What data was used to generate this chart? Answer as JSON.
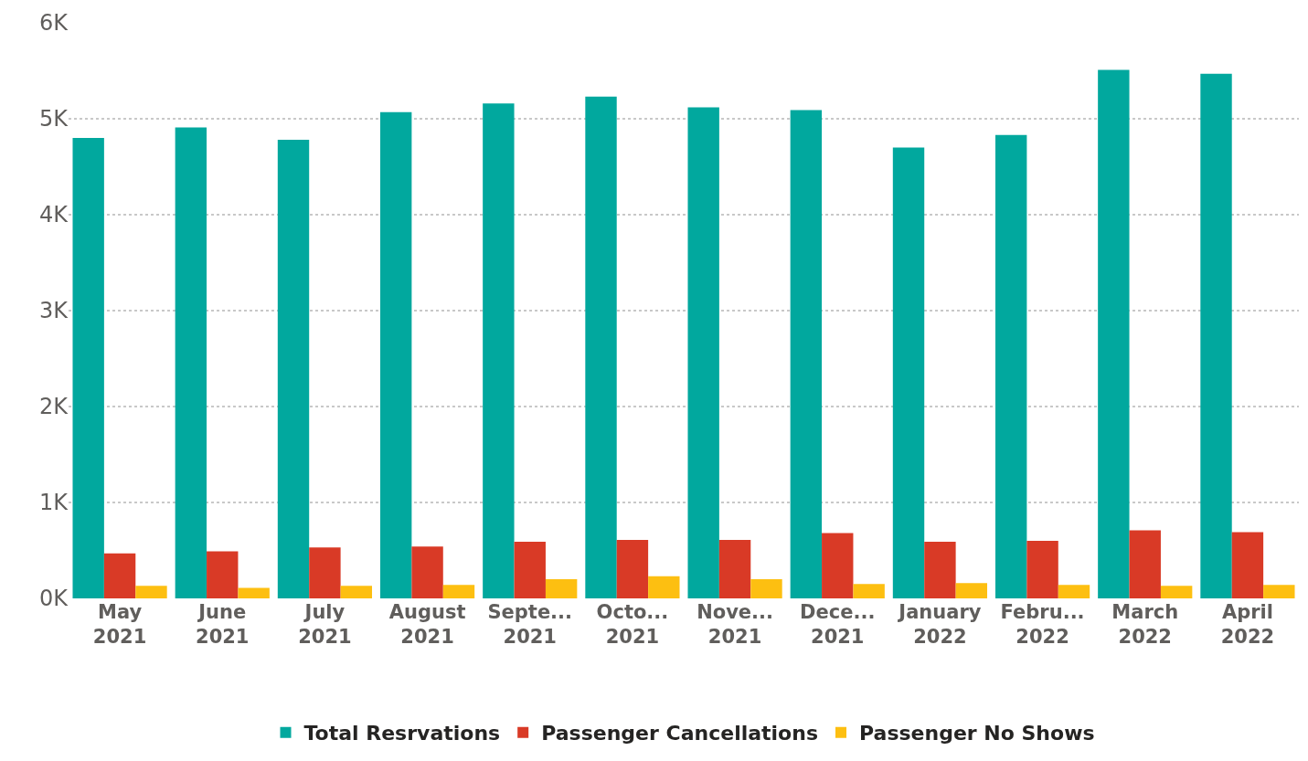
{
  "chart_data": {
    "type": "bar",
    "categories": [
      "May\n2021",
      "June\n2021",
      "July\n2021",
      "August\n2021",
      "Septe...\n2021",
      "Octo...\n2021",
      "Nove...\n2021",
      "Dece...\n2021",
      "January\n2022",
      "Febru...\n2022",
      "March\n2022",
      "April\n2022"
    ],
    "series": [
      {
        "name": "Total Resrvations",
        "color": "#01a89e",
        "values": [
          4800,
          4910,
          4780,
          5070,
          5160,
          5230,
          5120,
          5090,
          4700,
          4830,
          5510,
          5470
        ]
      },
      {
        "name": "Passenger Cancellations",
        "color": "#d93a26",
        "values": [
          470,
          490,
          530,
          540,
          590,
          610,
          610,
          680,
          590,
          600,
          710,
          690
        ]
      },
      {
        "name": "Passenger No Shows",
        "color": "#fdbf11",
        "values": [
          130,
          110,
          130,
          140,
          200,
          230,
          200,
          150,
          160,
          140,
          130,
          140
        ]
      }
    ],
    "ylim": [
      0,
      6000
    ],
    "yticks": [
      {
        "value": 0,
        "label": "0K"
      },
      {
        "value": 1000,
        "label": "1K"
      },
      {
        "value": 2000,
        "label": "2K"
      },
      {
        "value": 3000,
        "label": "3K"
      },
      {
        "value": 4000,
        "label": "4K"
      },
      {
        "value": 5000,
        "label": "5K"
      },
      {
        "value": 6000,
        "label": "6K"
      }
    ],
    "grid": "y",
    "legend": "bottom"
  }
}
